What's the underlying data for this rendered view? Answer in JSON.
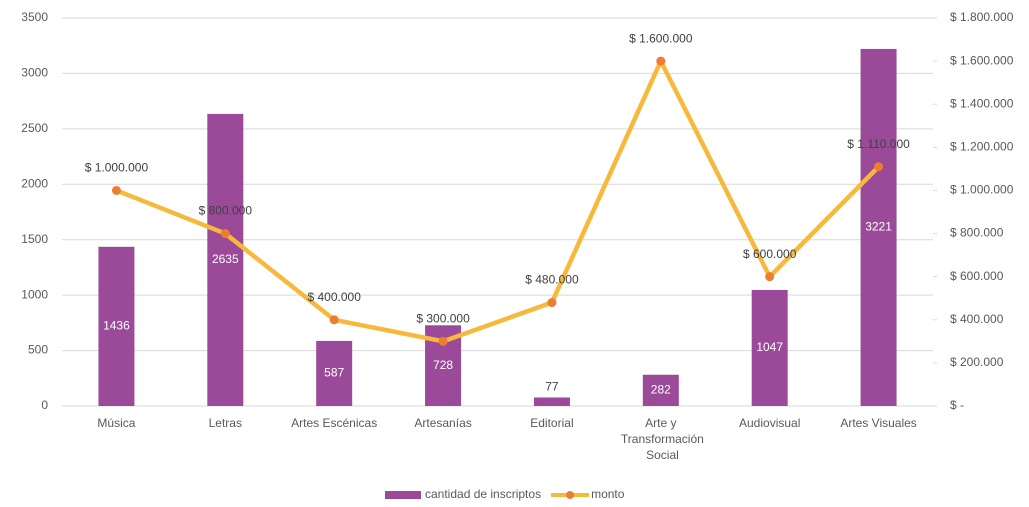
{
  "chart_data": {
    "type": "combo",
    "categories": [
      "Música",
      "Letras",
      "Artes Escénicas",
      "Artesanías",
      "Editorial",
      "Arte y Transformación Social",
      "Audiovisual",
      "Artes Visuales"
    ],
    "series": [
      {
        "name": "cantidad de inscriptos",
        "type": "bar",
        "color": "#9b4a9a",
        "values": [
          1436,
          2635,
          587,
          728,
          77,
          282,
          1047,
          3221
        ]
      },
      {
        "name": "monto",
        "type": "line",
        "axis": "y2",
        "color": "#f6b93b",
        "marker_color": "#ed7d31",
        "values": [
          1000000,
          800000,
          400000,
          300000,
          480000,
          1600000,
          600000,
          1110000
        ],
        "value_labels": [
          "$ 1.000.000",
          "$ 800.000",
          "$ 400.000",
          "$ 300.000",
          "$ 480.000",
          "$ 1.600.000",
          "$ 600.000",
          "$ 1.110.000"
        ]
      }
    ],
    "ylim": [
      0,
      3500
    ],
    "yticks": [
      0,
      500,
      1000,
      1500,
      2000,
      2500,
      3000,
      3500
    ],
    "y2lim": [
      0,
      1800000
    ],
    "y2ticks": [
      {
        "value": 0,
        "label": "$ -"
      },
      {
        "value": 200000,
        "label": "$ 200.000"
      },
      {
        "value": 400000,
        "label": "$ 400.000"
      },
      {
        "value": 600000,
        "label": "$ 600.000"
      },
      {
        "value": 800000,
        "label": "$ 800.000"
      },
      {
        "value": 1000000,
        "label": "$ 1.000.000"
      },
      {
        "value": 1200000,
        "label": "$ 1.200.000"
      },
      {
        "value": 1400000,
        "label": "$ 1.400.000"
      },
      {
        "value": 1600000,
        "label": "$ 1.600.000"
      },
      {
        "value": 1800000,
        "label": "$ 1.800.000"
      }
    ],
    "grid": true,
    "legend": "bottom"
  }
}
